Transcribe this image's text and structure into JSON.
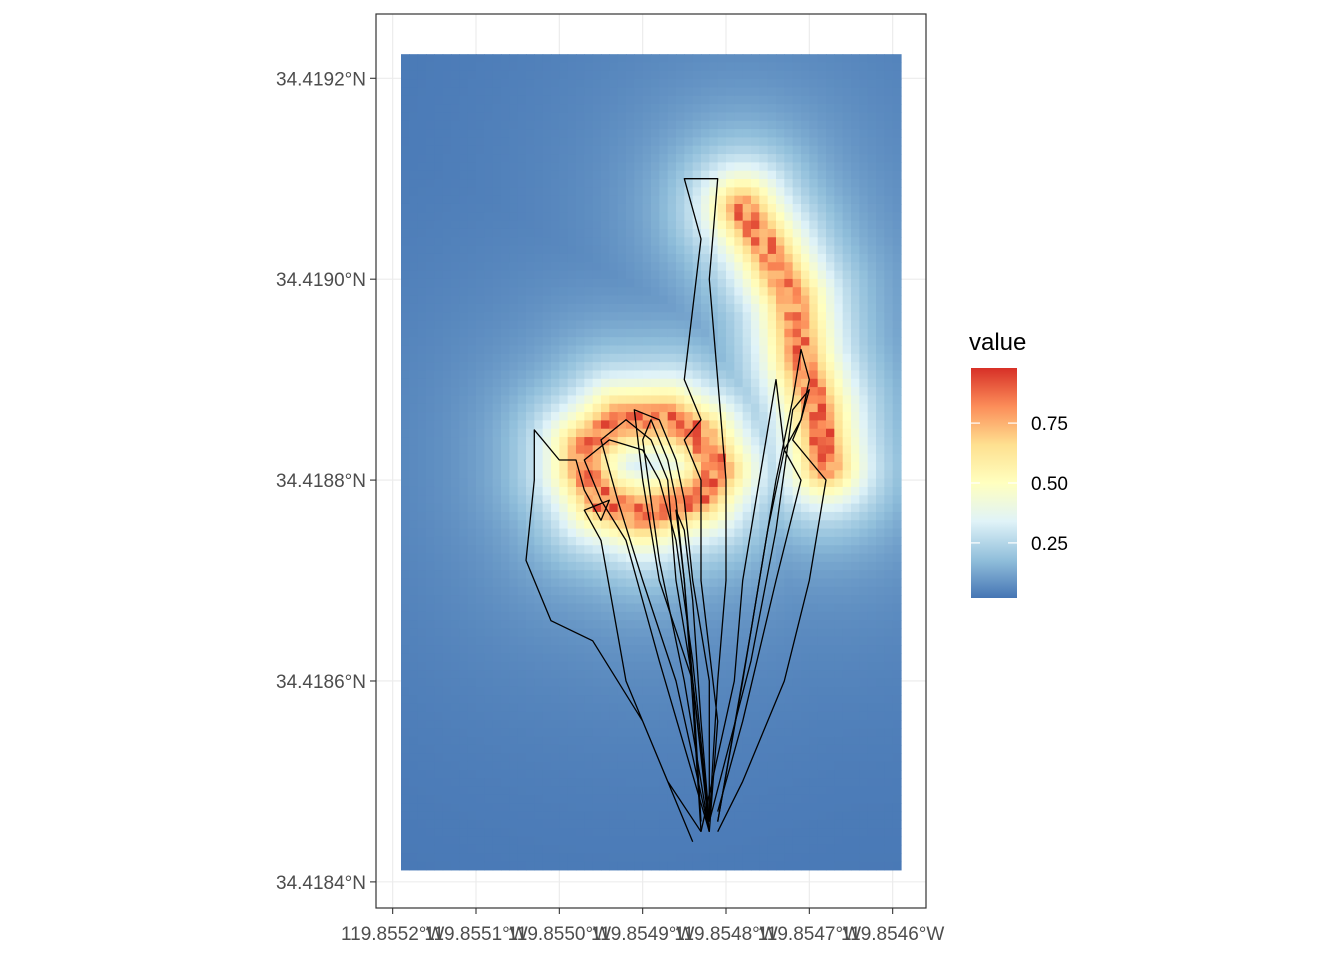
{
  "chart_data": {
    "type": "heatmap",
    "title": "",
    "xlabel": "",
    "ylabel": "",
    "x_axis": {
      "unit": "degrees longitude West",
      "lim": [
        119.85522,
        119.85456
      ],
      "ticks": [
        119.8552,
        119.8551,
        119.855,
        119.8549,
        119.8548,
        119.8547,
        119.8546
      ],
      "tick_labels": [
        "119.8552°W",
        "119.8551°W",
        "119.8550°W",
        "119.8549°W",
        "119.8548°W",
        "119.8547°W",
        "119.8546°W"
      ]
    },
    "y_axis": {
      "unit": "degrees latitude North",
      "lim": [
        34.418374,
        34.419264
      ],
      "ticks": [
        34.4184,
        34.4186,
        34.4188,
        34.419,
        34.4192
      ],
      "tick_labels": [
        "34.4184°N",
        "34.4186°N",
        "34.4188°N",
        "34.4190°N",
        "34.4192°N"
      ]
    },
    "raster_extent": {
      "lon": [
        119.85519,
        119.85459
      ],
      "lat": [
        34.418412,
        34.419224
      ]
    },
    "grid": true,
    "legend": {
      "title": "value",
      "position": "right",
      "range": [
        0.02,
        0.98
      ],
      "ticks": [
        0.25,
        0.5,
        0.75
      ],
      "tick_labels": [
        "0.25",
        "0.50",
        "0.75"
      ],
      "colors": [
        "#4575b4",
        "#91bfdb",
        "#e0f3f8",
        "#ffffbf",
        "#fee090",
        "#fc8d59",
        "#d73027"
      ]
    },
    "ridges": [
      {
        "name": "loop",
        "points": [
          [
            119.85497,
            34.418832
          ],
          [
            119.85493,
            34.41886
          ],
          [
            119.85487,
            34.418862
          ],
          [
            119.85483,
            34.418843
          ],
          [
            119.85481,
            34.41881
          ],
          [
            119.85483,
            34.418785
          ],
          [
            119.8549,
            34.418765
          ],
          [
            119.85495,
            34.41878
          ],
          [
            119.85497,
            34.41881
          ],
          [
            119.85497,
            34.418832
          ]
        ]
      },
      {
        "name": "arc",
        "points": [
          [
            119.85478,
            34.41907
          ],
          [
            119.85475,
            34.41903
          ],
          [
            119.85472,
            34.41898
          ],
          [
            119.85471,
            34.41892
          ],
          [
            119.85469,
            34.41887
          ],
          [
            119.85468,
            34.418815
          ]
        ]
      }
    ],
    "tracks": [
      [
        [
          119.85482,
          34.41845
        ],
        [
          119.85481,
          34.41856
        ],
        [
          119.85483,
          34.4187
        ],
        [
          119.85483,
          34.4188
        ],
        [
          119.85485,
          34.41884
        ],
        [
          119.85483,
          34.41886
        ],
        [
          119.85485,
          34.4189
        ],
        [
          119.85483,
          34.41904
        ],
        [
          119.85485,
          34.4191
        ],
        [
          119.85481,
          34.4191
        ],
        [
          119.85482,
          34.419
        ],
        [
          119.85481,
          34.4189
        ],
        [
          119.8548,
          34.4188
        ],
        [
          119.8548,
          34.4187
        ],
        [
          119.85481,
          34.4186
        ],
        [
          119.85482,
          34.41846
        ]
      ],
      [
        [
          119.85481,
          34.41846
        ],
        [
          119.85478,
          34.4186
        ],
        [
          119.85476,
          34.4187
        ],
        [
          119.85474,
          34.4188
        ],
        [
          119.85472,
          34.41888
        ],
        [
          119.85471,
          34.41893
        ],
        [
          119.8547,
          34.4189
        ],
        [
          119.85471,
          34.41886
        ],
        [
          119.85472,
          34.41884
        ],
        [
          119.8547,
          34.41882
        ],
        [
          119.85468,
          34.4188
        ],
        [
          119.8547,
          34.4187
        ],
        [
          119.85473,
          34.4186
        ],
        [
          119.85478,
          34.4185
        ],
        [
          119.85481,
          34.41845
        ]
      ],
      [
        [
          119.85482,
          34.41846
        ],
        [
          119.85477,
          34.41862
        ],
        [
          119.85474,
          34.41875
        ],
        [
          119.85472,
          34.41887
        ],
        [
          119.8547,
          34.41889
        ],
        [
          119.85471,
          34.41886
        ],
        [
          119.85473,
          34.41883
        ],
        [
          119.85471,
          34.4188
        ],
        [
          119.85474,
          34.4187
        ],
        [
          119.85478,
          34.41856
        ],
        [
          119.85481,
          34.41847
        ]
      ],
      [
        [
          119.85483,
          34.41845
        ],
        [
          119.85479,
          34.4186
        ],
        [
          119.85478,
          34.4187
        ],
        [
          119.85476,
          34.4188
        ],
        [
          119.85475,
          34.41885
        ],
        [
          119.85474,
          34.4189
        ],
        [
          119.85473,
          34.41883
        ],
        [
          119.85475,
          34.41875
        ],
        [
          119.85477,
          34.41865
        ],
        [
          119.85481,
          34.41846
        ]
      ],
      [
        [
          119.85482,
          34.41845
        ],
        [
          119.85484,
          34.4186
        ],
        [
          119.85488,
          34.4187
        ],
        [
          119.8549,
          34.4188
        ],
        [
          119.85491,
          34.41887
        ],
        [
          119.85488,
          34.41886
        ],
        [
          119.85486,
          34.41882
        ],
        [
          119.85485,
          34.41878
        ],
        [
          119.85484,
          34.4187
        ],
        [
          119.85482,
          34.4186
        ],
        [
          119.85482,
          34.41846
        ]
      ],
      [
        [
          119.85482,
          34.41845
        ],
        [
          119.85486,
          34.4186
        ],
        [
          119.8549,
          34.4187
        ],
        [
          119.85493,
          34.41878
        ],
        [
          119.85495,
          34.41884
        ],
        [
          119.85492,
          34.41886
        ],
        [
          119.85489,
          34.41884
        ],
        [
          119.85487,
          34.4188
        ],
        [
          119.85486,
          34.4187
        ],
        [
          119.85484,
          34.4186
        ],
        [
          119.85483,
          34.41846
        ]
      ],
      [
        [
          119.85482,
          34.41845
        ],
        [
          119.85488,
          34.41862
        ],
        [
          119.85492,
          34.41874
        ],
        [
          119.85495,
          34.41878
        ],
        [
          119.85497,
          34.41882
        ],
        [
          119.85494,
          34.41884
        ],
        [
          119.8549,
          34.41883
        ],
        [
          119.85488,
          34.4188
        ],
        [
          119.85486,
          34.41874
        ],
        [
          119.85484,
          34.41862
        ],
        [
          119.85482,
          34.41846
        ]
      ],
      [
        [
          119.85484,
          34.41844
        ],
        [
          119.8549,
          34.41856
        ],
        [
          119.85496,
          34.41864
        ],
        [
          119.85501,
          34.41866
        ],
        [
          119.85504,
          34.41872
        ],
        [
          119.85503,
          34.4188
        ],
        [
          119.85503,
          34.41885
        ],
        [
          119.85502,
          34.41884
        ],
        [
          119.855,
          34.41882
        ],
        [
          119.85498,
          34.41882
        ],
        [
          119.85497,
          34.41879
        ],
        [
          119.85495,
          34.41876
        ],
        [
          119.85494,
          34.41878
        ],
        [
          119.85497,
          34.41877
        ],
        [
          119.85495,
          34.41874
        ],
        [
          119.85492,
          34.4186
        ],
        [
          119.85487,
          34.4185
        ],
        [
          119.85483,
          34.41845
        ]
      ],
      [
        [
          119.85482,
          34.41845
        ],
        [
          119.85485,
          34.4186
        ],
        [
          119.85488,
          34.41872
        ],
        [
          119.8549,
          34.41884
        ],
        [
          119.85489,
          34.41886
        ],
        [
          119.85487,
          34.41882
        ],
        [
          119.85486,
          34.41878
        ],
        [
          119.85485,
          34.4187
        ],
        [
          119.85484,
          34.4186
        ],
        [
          119.85482,
          34.41846
        ]
      ],
      [
        [
          119.85483,
          34.41845
        ],
        [
          119.85484,
          34.41858
        ],
        [
          119.85485,
          34.4187
        ],
        [
          119.85486,
          34.41877
        ],
        [
          119.85485,
          34.41875
        ],
        [
          119.85484,
          34.41868
        ],
        [
          119.85483,
          34.41856
        ],
        [
          119.85482,
          34.41846
        ]
      ]
    ]
  }
}
